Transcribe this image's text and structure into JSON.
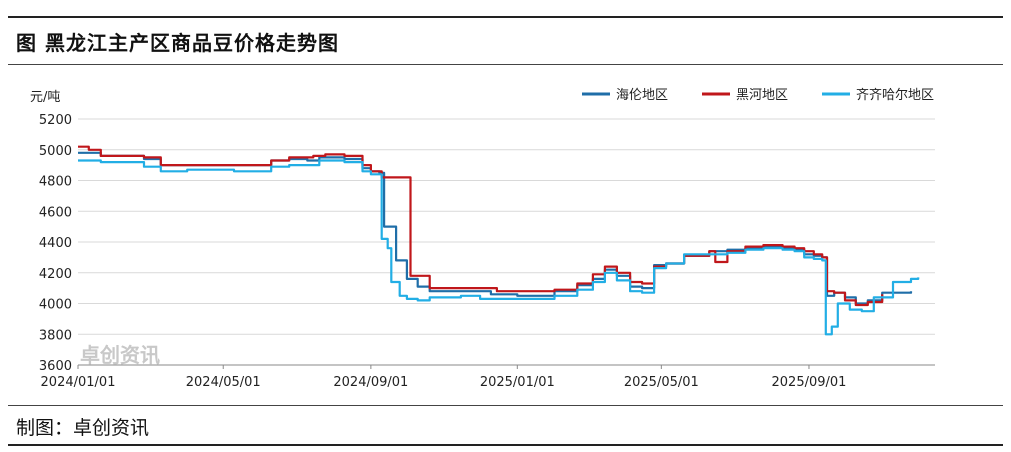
{
  "title": "图 黑龙江主产区商品豆价格走势图",
  "footer": "制图：卓创资讯",
  "watermark": "卓创资讯",
  "chart_data": {
    "type": "line",
    "ylabel": "元/吨",
    "ylim": [
      3600,
      5200
    ],
    "yticks": [
      3600,
      3800,
      4000,
      4200,
      4400,
      4600,
      4800,
      5000,
      5200
    ],
    "xlim": [
      "2024-01-01",
      "2025-12-15"
    ],
    "xticks": [
      "2024/01/01",
      "2024/05/01",
      "2024/09/01",
      "2025/01/01",
      "2025/05/01",
      "2025/09/01"
    ],
    "xtick_dates": [
      "2024-01-01",
      "2024-05-01",
      "2024-09-01",
      "2025-01-01",
      "2025-05-01",
      "2025-09-01"
    ],
    "grid": "horizontal",
    "legend": "top-right",
    "series": [
      {
        "name": "海伦地区",
        "color": "#1f6ea8",
        "points": [
          [
            "2024-01-01",
            4980
          ],
          [
            "2024-01-20",
            4960
          ],
          [
            "2024-02-25",
            4940
          ],
          [
            "2024-03-10",
            4900
          ],
          [
            "2024-04-15",
            4900
          ],
          [
            "2024-05-10",
            4900
          ],
          [
            "2024-06-10",
            4930
          ],
          [
            "2024-06-25",
            4940
          ],
          [
            "2024-07-10",
            4930
          ],
          [
            "2024-07-20",
            4950
          ],
          [
            "2024-08-10",
            4940
          ],
          [
            "2024-08-25",
            4880
          ],
          [
            "2024-09-01",
            4860
          ],
          [
            "2024-09-08",
            4850
          ],
          [
            "2024-09-12",
            4500
          ],
          [
            "2024-09-22",
            4280
          ],
          [
            "2024-10-01",
            4160
          ],
          [
            "2024-10-10",
            4110
          ],
          [
            "2024-10-20",
            4080
          ],
          [
            "2024-11-15",
            4080
          ],
          [
            "2024-12-10",
            4060
          ],
          [
            "2025-01-01",
            4050
          ],
          [
            "2025-02-01",
            4080
          ],
          [
            "2025-02-20",
            4120
          ],
          [
            "2025-03-05",
            4160
          ],
          [
            "2025-03-15",
            4220
          ],
          [
            "2025-03-25",
            4180
          ],
          [
            "2025-04-05",
            4110
          ],
          [
            "2025-04-15",
            4100
          ],
          [
            "2025-04-25",
            4250
          ],
          [
            "2025-05-05",
            4260
          ],
          [
            "2025-05-20",
            4310
          ],
          [
            "2025-06-10",
            4340
          ],
          [
            "2025-06-25",
            4350
          ],
          [
            "2025-07-10",
            4360
          ],
          [
            "2025-07-25",
            4370
          ],
          [
            "2025-08-10",
            4360
          ],
          [
            "2025-08-20",
            4350
          ],
          [
            "2025-08-28",
            4320
          ],
          [
            "2025-09-05",
            4310
          ],
          [
            "2025-09-12",
            4300
          ],
          [
            "2025-09-16",
            4050
          ],
          [
            "2025-09-22",
            4070
          ],
          [
            "2025-10-01",
            4040
          ],
          [
            "2025-10-10",
            4000
          ],
          [
            "2025-10-20",
            4020
          ],
          [
            "2025-11-01",
            4070
          ],
          [
            "2025-11-25",
            4080
          ]
        ]
      },
      {
        "name": "黑河地区",
        "color": "#c0171b",
        "points": [
          [
            "2024-01-01",
            5020
          ],
          [
            "2024-01-10",
            5000
          ],
          [
            "2024-01-20",
            4960
          ],
          [
            "2024-02-25",
            4950
          ],
          [
            "2024-03-10",
            4900
          ],
          [
            "2024-04-15",
            4900
          ],
          [
            "2024-05-10",
            4900
          ],
          [
            "2024-06-10",
            4930
          ],
          [
            "2024-06-25",
            4950
          ],
          [
            "2024-07-15",
            4960
          ],
          [
            "2024-07-25",
            4970
          ],
          [
            "2024-08-10",
            4960
          ],
          [
            "2024-08-25",
            4900
          ],
          [
            "2024-09-01",
            4860
          ],
          [
            "2024-09-10",
            4820
          ],
          [
            "2024-10-01",
            4820
          ],
          [
            "2024-10-04",
            4180
          ],
          [
            "2024-10-20",
            4100
          ],
          [
            "2024-11-15",
            4100
          ],
          [
            "2024-12-15",
            4080
          ],
          [
            "2025-01-01",
            4080
          ],
          [
            "2025-02-01",
            4090
          ],
          [
            "2025-02-20",
            4130
          ],
          [
            "2025-03-05",
            4190
          ],
          [
            "2025-03-15",
            4240
          ],
          [
            "2025-03-25",
            4200
          ],
          [
            "2025-04-05",
            4140
          ],
          [
            "2025-04-15",
            4130
          ],
          [
            "2025-04-25",
            4240
          ],
          [
            "2025-05-05",
            4260
          ],
          [
            "2025-05-20",
            4310
          ],
          [
            "2025-06-10",
            4340
          ],
          [
            "2025-06-15",
            4270
          ],
          [
            "2025-06-25",
            4340
          ],
          [
            "2025-07-10",
            4370
          ],
          [
            "2025-07-25",
            4380
          ],
          [
            "2025-08-10",
            4370
          ],
          [
            "2025-08-20",
            4360
          ],
          [
            "2025-08-28",
            4340
          ],
          [
            "2025-09-05",
            4320
          ],
          [
            "2025-09-12",
            4300
          ],
          [
            "2025-09-16",
            4080
          ],
          [
            "2025-09-22",
            4070
          ],
          [
            "2025-10-01",
            4020
          ],
          [
            "2025-10-10",
            3990
          ],
          [
            "2025-10-20",
            4010
          ],
          [
            "2025-11-01",
            4060
          ]
        ]
      },
      {
        "name": "齐齐哈尔地区",
        "color": "#22aee5",
        "points": [
          [
            "2024-01-01",
            4930
          ],
          [
            "2024-01-20",
            4920
          ],
          [
            "2024-02-25",
            4890
          ],
          [
            "2024-03-10",
            4860
          ],
          [
            "2024-04-01",
            4870
          ],
          [
            "2024-05-10",
            4860
          ],
          [
            "2024-06-10",
            4890
          ],
          [
            "2024-06-25",
            4900
          ],
          [
            "2024-07-20",
            4930
          ],
          [
            "2024-08-10",
            4920
          ],
          [
            "2024-08-25",
            4860
          ],
          [
            "2024-09-01",
            4840
          ],
          [
            "2024-09-08",
            4840
          ],
          [
            "2024-09-10",
            4420
          ],
          [
            "2024-09-15",
            4360
          ],
          [
            "2024-09-18",
            4140
          ],
          [
            "2024-09-25",
            4050
          ],
          [
            "2024-10-01",
            4030
          ],
          [
            "2024-10-10",
            4020
          ],
          [
            "2024-10-20",
            4040
          ],
          [
            "2024-11-15",
            4050
          ],
          [
            "2024-12-01",
            4030
          ],
          [
            "2025-01-01",
            4030
          ],
          [
            "2025-02-01",
            4050
          ],
          [
            "2025-02-20",
            4090
          ],
          [
            "2025-03-05",
            4140
          ],
          [
            "2025-03-15",
            4200
          ],
          [
            "2025-03-25",
            4150
          ],
          [
            "2025-04-05",
            4080
          ],
          [
            "2025-04-15",
            4070
          ],
          [
            "2025-04-25",
            4230
          ],
          [
            "2025-05-05",
            4260
          ],
          [
            "2025-05-20",
            4320
          ],
          [
            "2025-06-10",
            4320
          ],
          [
            "2025-06-25",
            4330
          ],
          [
            "2025-07-10",
            4350
          ],
          [
            "2025-07-25",
            4360
          ],
          [
            "2025-08-10",
            4350
          ],
          [
            "2025-08-20",
            4340
          ],
          [
            "2025-08-28",
            4300
          ],
          [
            "2025-09-05",
            4290
          ],
          [
            "2025-09-12",
            4280
          ],
          [
            "2025-09-15",
            3800
          ],
          [
            "2025-09-20",
            3850
          ],
          [
            "2025-09-25",
            4000
          ],
          [
            "2025-10-05",
            3960
          ],
          [
            "2025-10-15",
            3950
          ],
          [
            "2025-10-25",
            4040
          ],
          [
            "2025-11-10",
            4140
          ],
          [
            "2025-11-25",
            4160
          ],
          [
            "2025-12-01",
            4170
          ]
        ]
      }
    ]
  }
}
